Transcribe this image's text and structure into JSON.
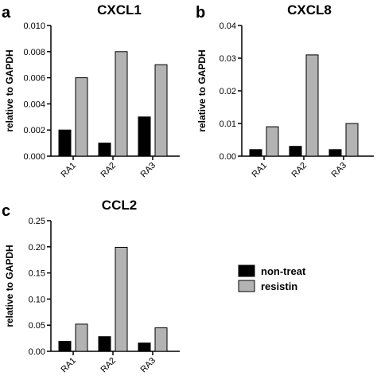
{
  "chart_data": [
    {
      "type": "bar",
      "panel": "a",
      "title": "CXCL1",
      "ylabel": "relative to GAPDH",
      "xlabel": "",
      "categories": [
        "RA1",
        "RA2",
        "RA3"
      ],
      "ylim": [
        0,
        0.01
      ],
      "yticks": [
        "0.000",
        "0.002",
        "0.004",
        "0.006",
        "0.008",
        "0.010"
      ],
      "series": [
        {
          "name": "non-treat",
          "values": [
            0.002,
            0.001,
            0.003
          ]
        },
        {
          "name": "resistin",
          "values": [
            0.006,
            0.008,
            0.007
          ]
        }
      ]
    },
    {
      "type": "bar",
      "panel": "b",
      "title": "CXCL8",
      "ylabel": "relative to GAPDH",
      "xlabel": "",
      "categories": [
        "RA1",
        "RA2",
        "RA3"
      ],
      "ylim": [
        0,
        0.04
      ],
      "yticks": [
        "0.00",
        "0.01",
        "0.02",
        "0.03",
        "0.04"
      ],
      "series": [
        {
          "name": "non-treat",
          "values": [
            0.002,
            0.003,
            0.002
          ]
        },
        {
          "name": "resistin",
          "values": [
            0.009,
            0.031,
            0.01
          ]
        }
      ]
    },
    {
      "type": "bar",
      "panel": "c",
      "title": "CCL2",
      "ylabel": "relative to GAPDH",
      "xlabel": "",
      "categories": [
        "RA1",
        "RA2",
        "RA3"
      ],
      "ylim": [
        0,
        0.25
      ],
      "yticks": [
        "0.00",
        "0.05",
        "0.10",
        "0.15",
        "0.20",
        "0.25"
      ],
      "series": [
        {
          "name": "non-treat",
          "values": [
            0.019,
            0.028,
            0.016
          ]
        },
        {
          "name": "resistin",
          "values": [
            0.052,
            0.199,
            0.045
          ]
        }
      ]
    }
  ],
  "legend": {
    "items": [
      {
        "label": "non-treat",
        "color": "#000000"
      },
      {
        "label": "resistin",
        "color": "#b3b3b3"
      }
    ]
  },
  "colors": {
    "non-treat": "#000000",
    "resistin": "#b3b3b3"
  }
}
